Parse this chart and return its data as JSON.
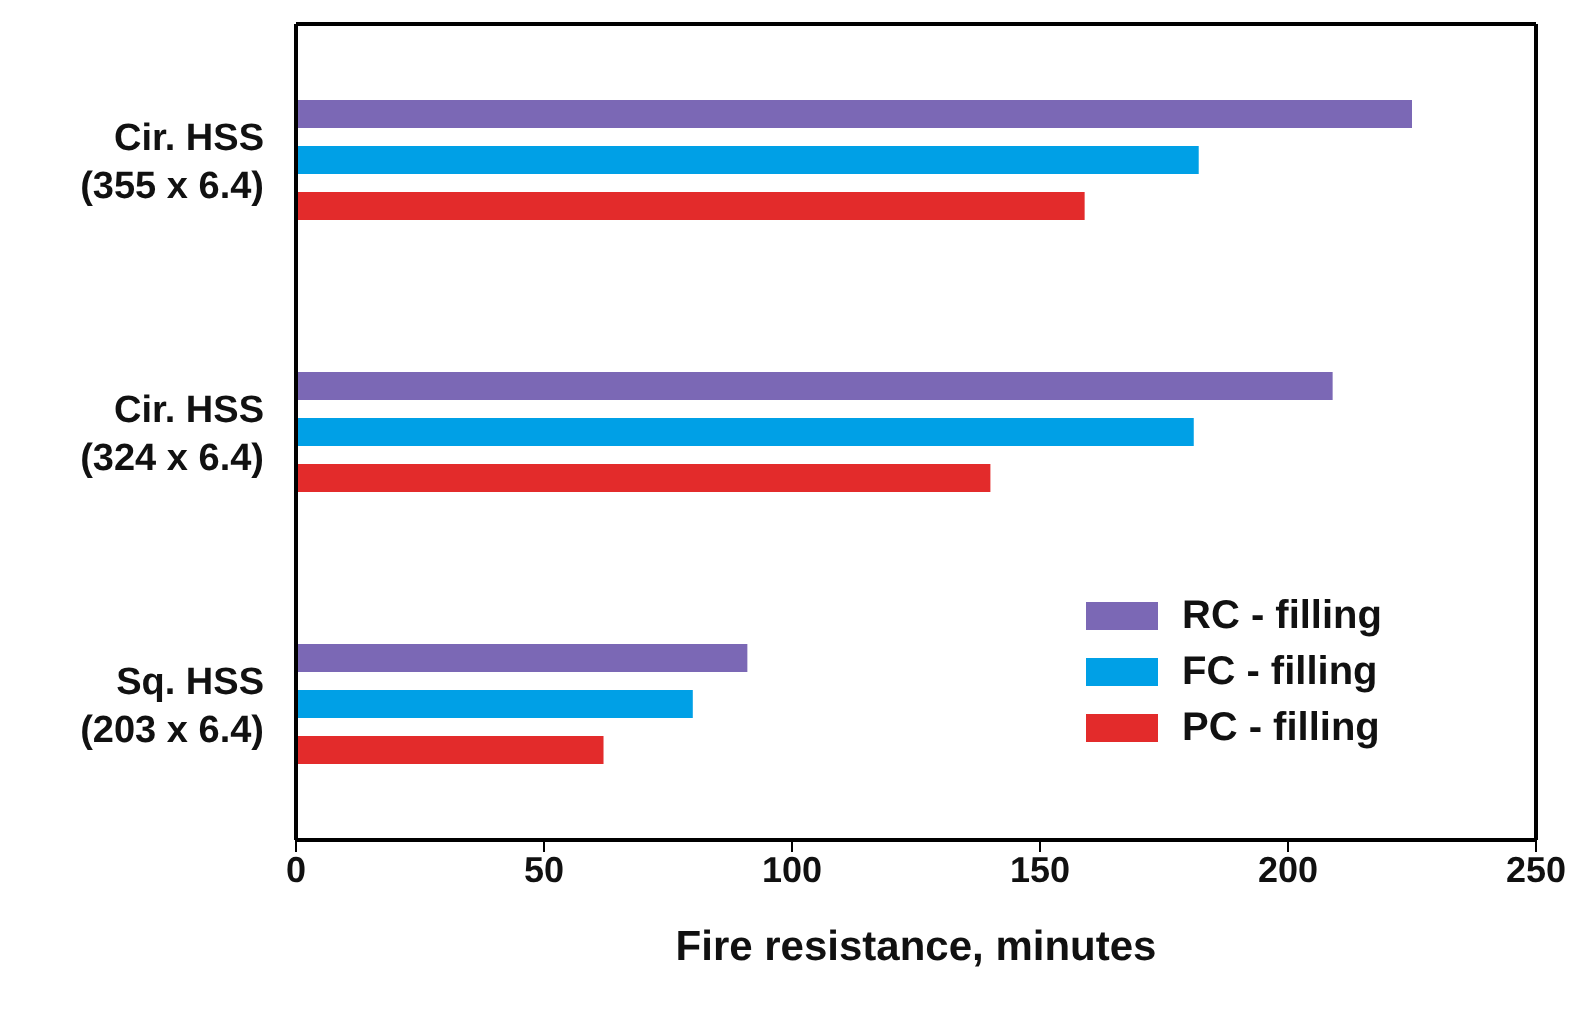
{
  "chart_data": {
    "type": "bar",
    "orientation": "horizontal",
    "xlabel": "Fire resistance, minutes",
    "categories": [
      "Cir. HSS\n(355 x 6.4)",
      "Cir. HSS\n(324 x 6.4)",
      "Sq. HSS\n(203 x 6.4)"
    ],
    "series": [
      {
        "name": "RC - filling",
        "color": "#7b68b5",
        "values": [
          225,
          209,
          91
        ]
      },
      {
        "name": "FC - filling",
        "color": "#00a0e6",
        "values": [
          182,
          181,
          80
        ]
      },
      {
        "name": "PC - filling",
        "color": "#e32b2b",
        "values": [
          159,
          140,
          62
        ]
      }
    ],
    "xlim": [
      0,
      250
    ],
    "xticks": [
      0,
      50,
      100,
      150,
      200,
      250
    ],
    "grid": false,
    "legend": "bottom right"
  }
}
